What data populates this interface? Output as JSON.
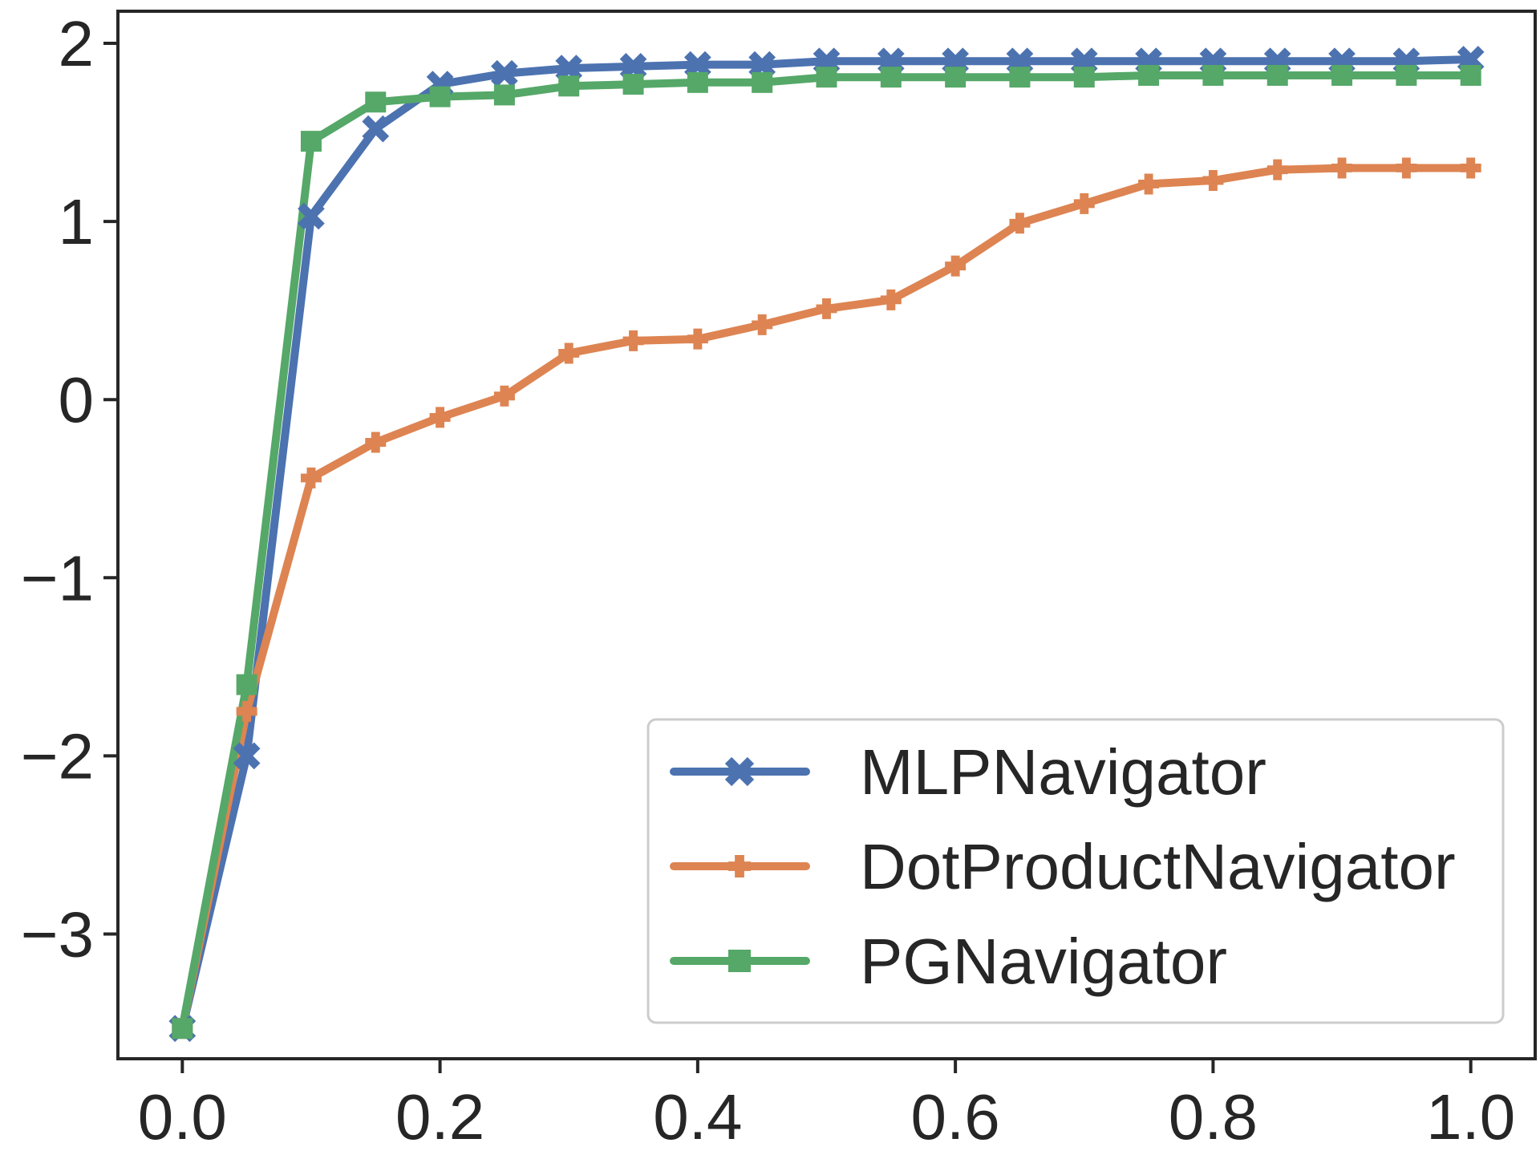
{
  "chart_data": {
    "type": "line",
    "title": "",
    "xlabel": "",
    "ylabel": "",
    "xlim": [
      -0.05,
      1.05
    ],
    "ylim": [
      -3.7,
      2.18
    ],
    "grid": false,
    "legend_position": "lower-right",
    "x_ticks": [
      {
        "value": 0.0,
        "label": "0.0"
      },
      {
        "value": 0.2,
        "label": "0.2"
      },
      {
        "value": 0.4,
        "label": "0.4"
      },
      {
        "value": 0.6,
        "label": "0.6"
      },
      {
        "value": 0.8,
        "label": "0.8"
      },
      {
        "value": 1.0,
        "label": "1.0"
      }
    ],
    "y_ticks": [
      {
        "value": 2,
        "label": "2"
      },
      {
        "value": 1,
        "label": "1"
      },
      {
        "value": 0,
        "label": "0"
      },
      {
        "value": -1,
        "label": "−1"
      },
      {
        "value": -2,
        "label": "−2"
      },
      {
        "value": -3,
        "label": "−3"
      }
    ],
    "x": [
      0.0,
      0.05,
      0.1,
      0.15,
      0.2,
      0.25,
      0.3,
      0.35,
      0.4,
      0.45,
      0.5,
      0.55,
      0.6,
      0.65,
      0.7,
      0.75,
      0.8,
      0.85,
      0.9,
      0.95,
      1.0
    ],
    "series": [
      {
        "name": "MLPNavigator",
        "color": "#4c72b0",
        "marker": "x-icon",
        "values": [
          -3.53,
          -2.0,
          1.03,
          1.52,
          1.77,
          1.83,
          1.86,
          1.87,
          1.88,
          1.88,
          1.9,
          1.9,
          1.9,
          1.9,
          1.9,
          1.9,
          1.9,
          1.9,
          1.9,
          1.9,
          1.91
        ]
      },
      {
        "name": "DotProductNavigator",
        "color": "#dd8452",
        "marker": "plus-icon",
        "values": [
          -3.53,
          -1.75,
          -0.44,
          -0.24,
          -0.1,
          0.02,
          0.26,
          0.33,
          0.34,
          0.42,
          0.51,
          0.56,
          0.75,
          0.99,
          1.1,
          1.21,
          1.23,
          1.29,
          1.3,
          1.3,
          1.3
        ]
      },
      {
        "name": "PGNavigator",
        "color": "#55a868",
        "marker": "square-icon",
        "values": [
          -3.53,
          -1.6,
          1.45,
          1.67,
          1.7,
          1.71,
          1.76,
          1.77,
          1.78,
          1.78,
          1.81,
          1.81,
          1.81,
          1.81,
          1.81,
          1.82,
          1.82,
          1.82,
          1.82,
          1.82,
          1.82
        ]
      }
    ]
  }
}
